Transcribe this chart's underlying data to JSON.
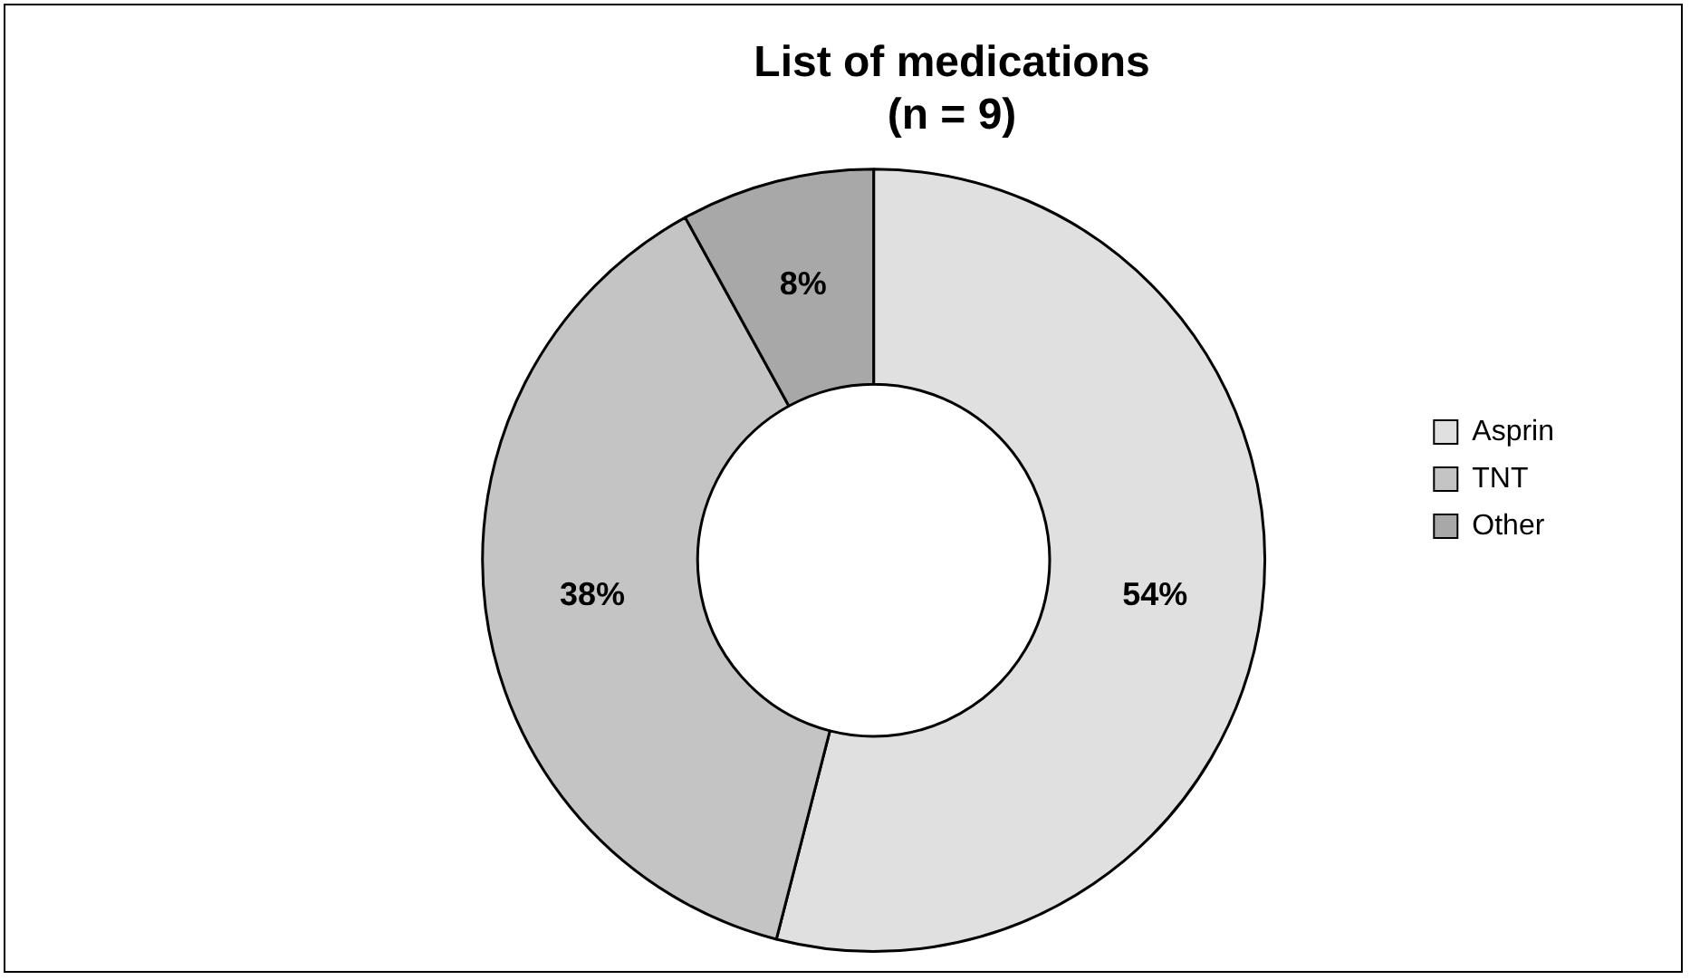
{
  "chart_data": {
    "type": "donut",
    "title": "List of medications\n(n = 9)",
    "categories": [
      "Asprin",
      "TNT",
      "Other"
    ],
    "values": [
      54,
      38,
      8
    ],
    "colors": [
      "#e0e0e0",
      "#c4c4c4",
      "#a8a8a8"
    ],
    "value_labels": [
      "54%",
      "38%",
      "8%"
    ],
    "legend": "right"
  }
}
